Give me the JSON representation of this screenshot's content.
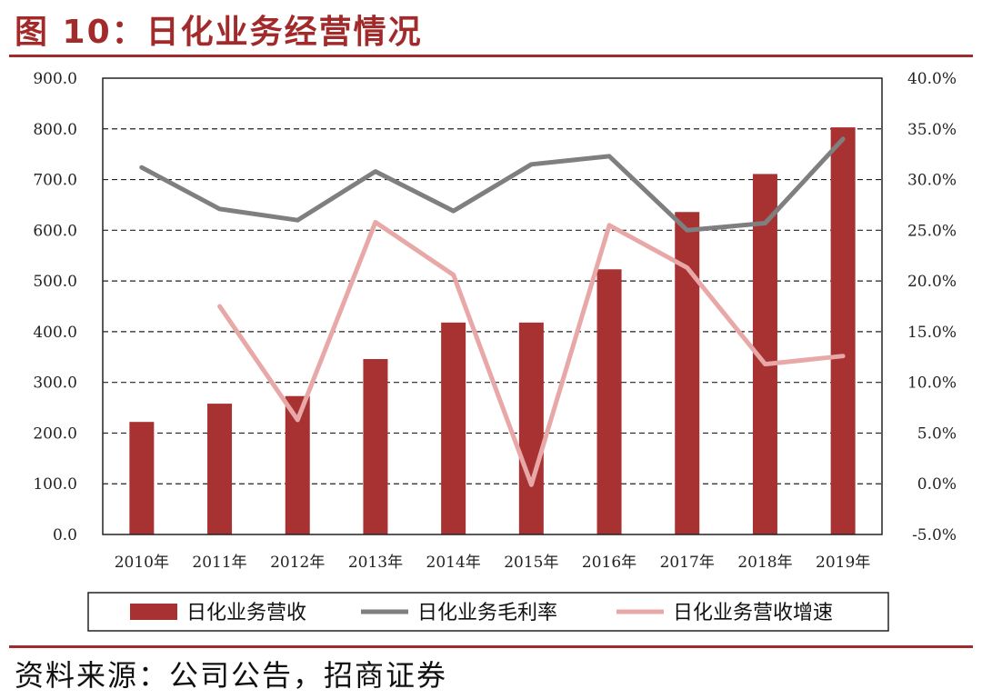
{
  "title": "图 10：日化业务经营情况",
  "source": "资料来源：公司公告，招商证券",
  "chart_data": {
    "type": "bar",
    "categories": [
      "2010年",
      "2011年",
      "2012年",
      "2013年",
      "2014年",
      "2015年",
      "2016年",
      "2017年",
      "2018年",
      "2019年"
    ],
    "series": [
      {
        "name": "日化业务营收",
        "type": "bar",
        "axis": "left",
        "color": "#a83232",
        "values": [
          222,
          258,
          273,
          346,
          418,
          418,
          523,
          636,
          711,
          803
        ]
      },
      {
        "name": "日化业务毛利率",
        "type": "line",
        "axis": "right",
        "color": "#7f7f7f",
        "values": [
          31.2,
          27.1,
          26.0,
          30.8,
          26.9,
          31.5,
          32.3,
          25.0,
          25.7,
          34.0
        ]
      },
      {
        "name": "日化业务营收增速",
        "type": "line",
        "axis": "right",
        "color": "#e8a8a8",
        "values": [
          null,
          17.5,
          6.3,
          25.8,
          20.6,
          -0.1,
          25.5,
          21.3,
          11.8,
          12.6
        ]
      }
    ],
    "y_left": {
      "ylim": [
        0,
        900
      ],
      "ticks": [
        "0.0",
        "100.0",
        "200.0",
        "300.0",
        "400.0",
        "500.0",
        "600.0",
        "700.0",
        "800.0",
        "900.0"
      ]
    },
    "y_right": {
      "ylim": [
        -5,
        40
      ],
      "ticks": [
        "-5.0%",
        "0.0%",
        "5.0%",
        "10.0%",
        "15.0%",
        "20.0%",
        "25.0%",
        "30.0%",
        "35.0%",
        "40.0%"
      ]
    },
    "grid": true,
    "legend": "bottom"
  }
}
